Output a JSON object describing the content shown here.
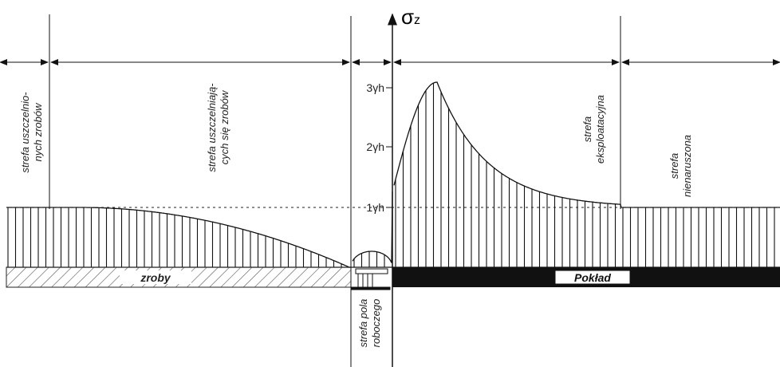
{
  "axis": {
    "symbol": "σ",
    "subscript": "z",
    "ticks": [
      "3γh",
      "2γh",
      "1γh"
    ]
  },
  "zones": [
    {
      "lines": [
        "strefa uszczelnio-",
        "nych zrobów"
      ]
    },
    {
      "lines": [
        "strefa uszczelniają-",
        "cych się zrobów"
      ]
    },
    {
      "lines": [
        "strefa pola",
        "roboczego"
      ]
    },
    {
      "lines": [
        "strefa",
        "eksploatacyjna"
      ]
    },
    {
      "lines": [
        "strefa",
        "nienaruszona"
      ]
    }
  ],
  "layers": {
    "goaf": "zroby",
    "seam": "Pokład"
  }
}
